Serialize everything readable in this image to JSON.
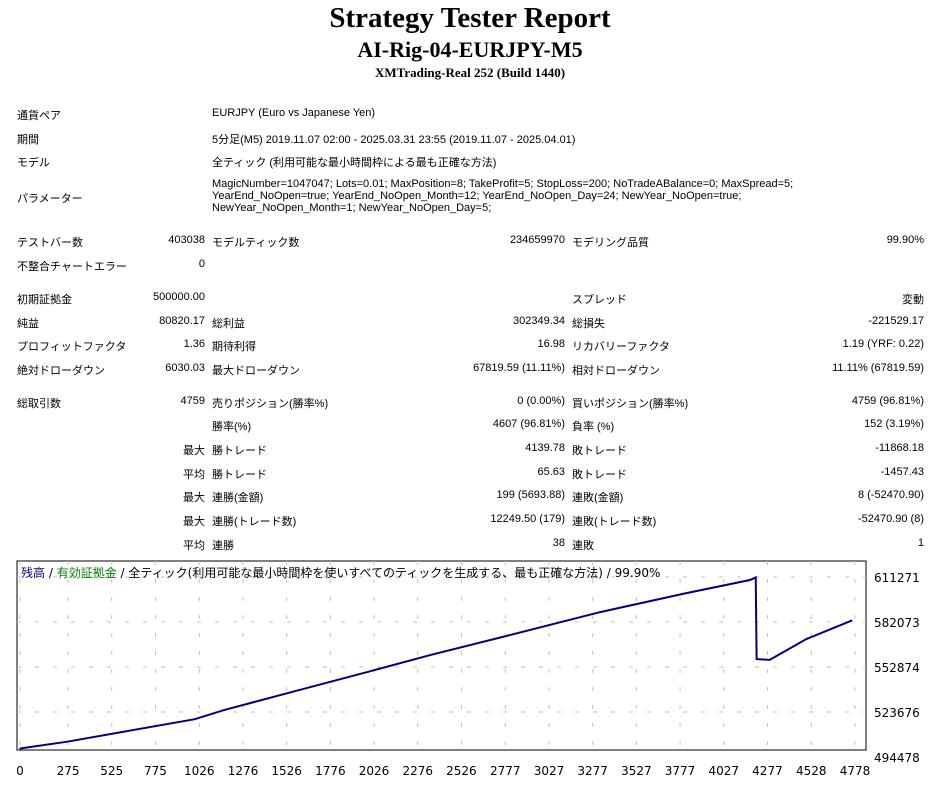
{
  "title": "Strategy Tester Report",
  "subtitle": "AI-Rig-04-EURJPY-M5",
  "server": "XMTrading-Real 252 (Build 1440)",
  "info": {
    "symbol_label": "通貨ペア",
    "symbol": "EURJPY (Euro vs Japanese Yen)",
    "period_label": "期間",
    "period": "5分足(M5) 2019.11.07 02:00 - 2025.03.31 23:55 (2019.11.07 - 2025.04.01)",
    "model_label": "モデル",
    "model": "全ティック (利用可能な最小時間枠による最も正確な方法)",
    "params_label": "パラメーター",
    "params": [
      "MagicNumber=1047047; Lots=0.01; MaxPosition=8; TakeProfit=5; StopLoss=200; NoTradeABalance=0; MaxSpread=5;",
      "YearEnd_NoOpen=true; YearEnd_NoOpen_Month=12; YearEnd_NoOpen_Day=24; NewYear_NoOpen=true;",
      "NewYear_NoOpen_Month=1; NewYear_NoOpen_Day=5;"
    ]
  },
  "stats": [
    {
      "y": 240,
      "c": [
        [
          "テストバー数",
          "403038"
        ],
        [
          "モデルティック数",
          "234659970"
        ],
        [
          "モデリング品質",
          "99.90%"
        ]
      ]
    },
    {
      "y": 264,
      "c": [
        [
          "不整合チャートエラー",
          "0"
        ]
      ]
    },
    {
      "y": 297,
      "c": [
        [
          "初期証拠金",
          "500000.00"
        ],
        [
          "",
          ""
        ],
        [
          "スプレッド",
          "変動"
        ]
      ]
    },
    {
      "y": 321,
      "c": [
        [
          "純益",
          "80820.17"
        ],
        [
          "総利益",
          "302349.34"
        ],
        [
          "総損失",
          "-221529.17"
        ]
      ]
    },
    {
      "y": 344,
      "c": [
        [
          "プロフィットファクタ",
          "1.36"
        ],
        [
          "期待利得",
          "16.98"
        ],
        [
          "リカバリーファクタ",
          "1.19 (YRF: 0.22)"
        ]
      ]
    },
    {
      "y": 368,
      "c": [
        [
          "絶対ドローダウン",
          "6030.03"
        ],
        [
          "最大ドローダウン",
          "67819.59 (11.11%)"
        ],
        [
          "相対ドローダウン",
          "11.11% (67819.59)"
        ]
      ]
    },
    {
      "y": 401,
      "c": [
        [
          "総取引数",
          "4759"
        ],
        [
          "売りポジション(勝率%)",
          "0 (0.00%)"
        ],
        [
          "買いポジション(勝率%)",
          "4759 (96.81%)"
        ]
      ]
    },
    {
      "y": 424,
      "c": [
        [
          "",
          ""
        ],
        [
          "勝率(%)",
          "4607 (96.81%)"
        ],
        [
          "負率 (%)",
          "152 (3.19%)"
        ]
      ]
    },
    {
      "y": 448,
      "c": [
        [
          "",
          "最大"
        ],
        [
          "勝トレード",
          "4139.78"
        ],
        [
          "敗トレード",
          "-11868.18"
        ]
      ]
    },
    {
      "y": 472,
      "c": [
        [
          "",
          "平均"
        ],
        [
          "勝トレード",
          "65.63"
        ],
        [
          "敗トレード",
          "-1457.43"
        ]
      ]
    },
    {
      "y": 495,
      "c": [
        [
          "",
          "最大"
        ],
        [
          "連勝(金額)",
          "199 (5693.88)"
        ],
        [
          "連敗(金額)",
          "8 (-52470.90)"
        ]
      ]
    },
    {
      "y": 519,
      "c": [
        [
          "",
          "最大"
        ],
        [
          "連勝(トレード数)",
          "12249.50 (179)"
        ],
        [
          "連敗(トレード数)",
          "-52470.90 (8)"
        ]
      ]
    },
    {
      "y": 543,
      "c": [
        [
          "",
          "平均"
        ],
        [
          "連勝",
          "38"
        ],
        [
          "連敗",
          "1"
        ]
      ]
    }
  ],
  "chart_data": {
    "type": "line",
    "legend": {
      "balance": "残高",
      "sep1": " / ",
      "equity": "有効証拠金",
      "rest": " / 全ティック(利用可能な最小時間枠を使いすべてのティックを生成する、最も正確な方法) / 99.90%"
    },
    "colors": {
      "balance": "#000080",
      "equity": "#008000",
      "grid": "#c0c0c0"
    },
    "x_ticks": [
      0,
      275,
      525,
      775,
      1026,
      1276,
      1526,
      1776,
      2026,
      2276,
      2526,
      2777,
      3027,
      3277,
      3527,
      3777,
      4027,
      4277,
      4528,
      4778
    ],
    "y_ticks": [
      494478,
      523676,
      552874,
      582073,
      611271
    ],
    "xlim": [
      0,
      4778
    ],
    "ylim": [
      494478,
      617000
    ],
    "series": [
      {
        "x": [
          0,
          275,
          600,
          1000,
          1170,
          1600,
          2000,
          2350,
          2800,
          3320,
          3800,
          4177,
          4210,
          4215,
          4290,
          4500,
          4759
        ],
        "values": [
          500000,
          504500,
          511000,
          519000,
          525000,
          538000,
          550000,
          560700,
          573500,
          588500,
          600500,
          609300,
          611000,
          558000,
          557500,
          571000,
          583000
        ]
      }
    ]
  }
}
